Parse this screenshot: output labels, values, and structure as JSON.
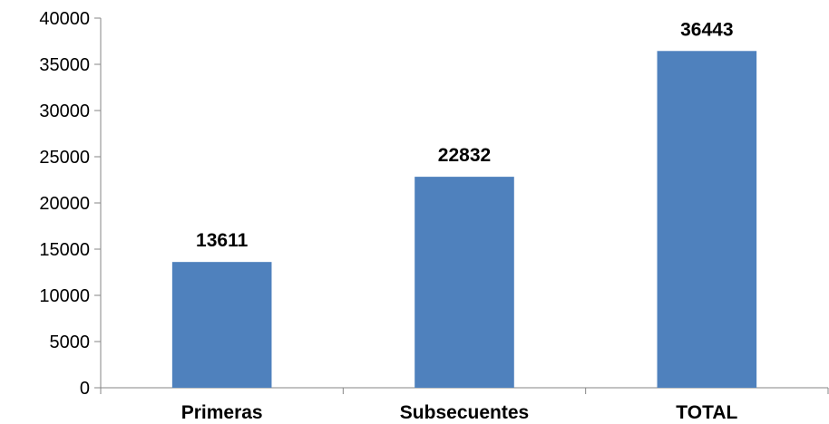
{
  "chart_data": {
    "type": "bar",
    "categories": [
      "Primeras",
      "Subsecuentes",
      "TOTAL"
    ],
    "values": [
      13611,
      22832,
      36443
    ],
    "data_labels": [
      "13611",
      "22832",
      "36443"
    ],
    "y_ticks": [
      "0",
      "5000",
      "10000",
      "15000",
      "20000",
      "25000",
      "30000",
      "35000",
      "40000"
    ],
    "ylim": [
      0,
      40000
    ],
    "bar_color": "#4F81BD",
    "grid": false,
    "legend": "none"
  }
}
